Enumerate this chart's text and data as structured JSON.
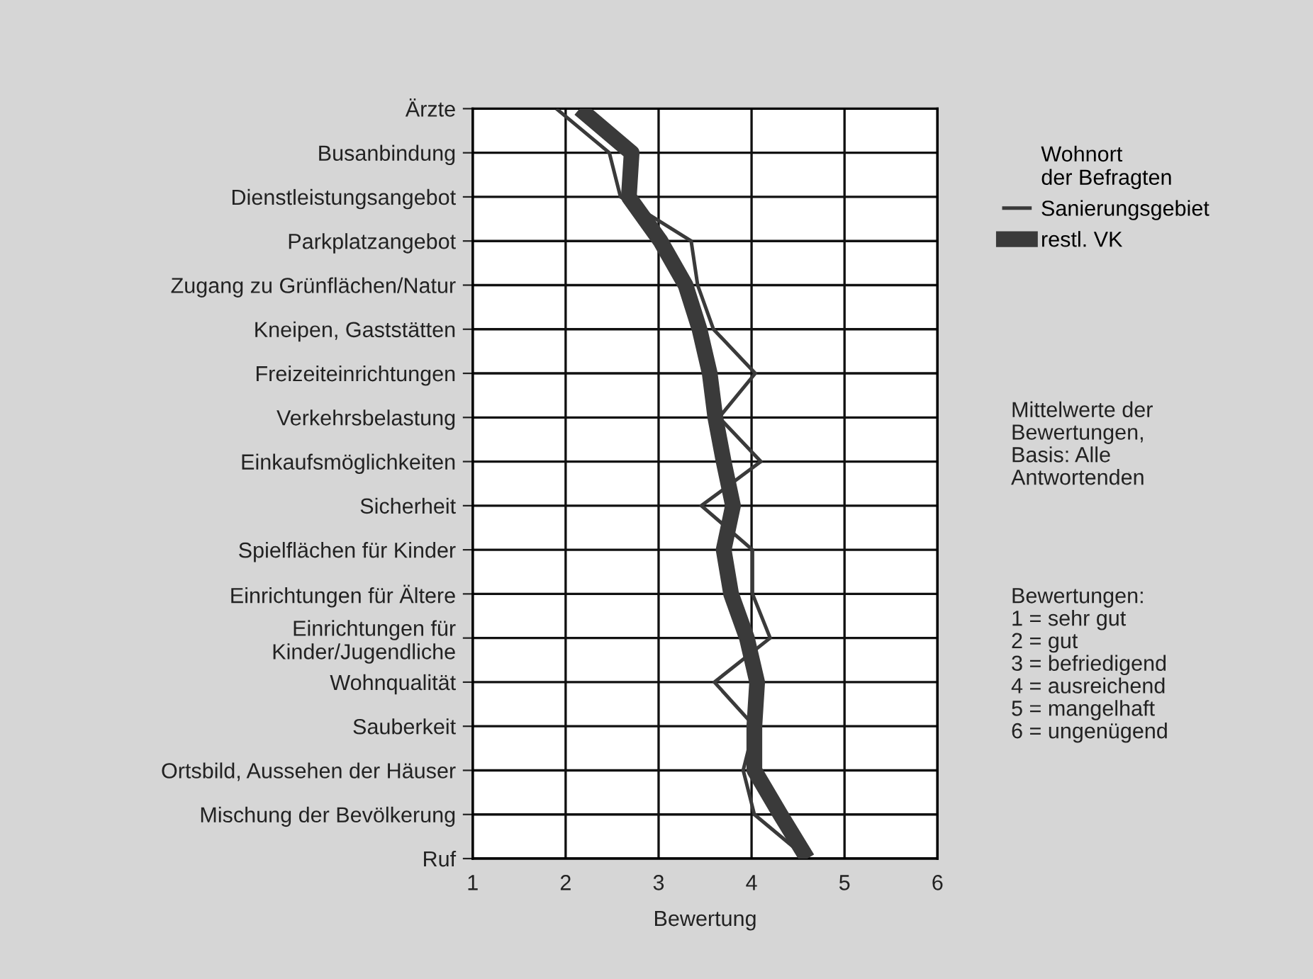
{
  "chart_data": {
    "type": "line",
    "orientation": "horizontal",
    "categories": [
      "Ärzte",
      "Busanbindung",
      "Dienstleistungsangebot",
      "Parkplatzangebot",
      "Zugang zu Grünflächen/Natur",
      "Kneipen, Gaststätten",
      "Freizeiteinrichtungen",
      "Verkehrsbelastung",
      "Einkaufsmöglichkeiten",
      "Sicherheit",
      "Spielflächen für Kinder",
      "Einrichtungen für Ältere",
      "Einrichtungen für\nKinder/Jugendliche",
      "Wohnqualität",
      "Sauberkeit",
      "Ortsbild, Aussehen der Häuser",
      "Mischung der Bevölkerung",
      "Ruf"
    ],
    "series": [
      {
        "name": "Sanierungsgebiet",
        "color": "#3a3a3a",
        "values": [
          1.9,
          2.47,
          2.59,
          3.35,
          3.42,
          3.59,
          4.04,
          3.65,
          4.1,
          3.46,
          4.01,
          4.01,
          4.2,
          3.6,
          4.03,
          3.91,
          4.03,
          4.6
        ]
      },
      {
        "name": "restl. VK",
        "color": "#3a3a3a",
        "values": [
          2.15,
          2.71,
          2.68,
          3.02,
          3.29,
          3.44,
          3.55,
          3.61,
          3.7,
          3.8,
          3.7,
          3.78,
          3.95,
          4.06,
          4.03,
          4.03,
          4.31,
          4.6
        ]
      }
    ],
    "xlim": [
      1,
      6
    ],
    "xticks": [
      1,
      2,
      3,
      4,
      5,
      6
    ],
    "xlabel": "Bewertung",
    "grid": true,
    "legend": "right",
    "legend_title": "Wohnort\nder Befragten",
    "marker": "none",
    "line_style": "solid",
    "annotations": [
      "Mittelwerte der\nBewertungen,\nBasis: Alle\nAntwortenden",
      "Bewertungen:\n1 = sehr gut\n2 = gut\n3 = befriedigend\n4 = ausreichend\n5 = mangelhaft\n6 = ungenügend"
    ]
  }
}
